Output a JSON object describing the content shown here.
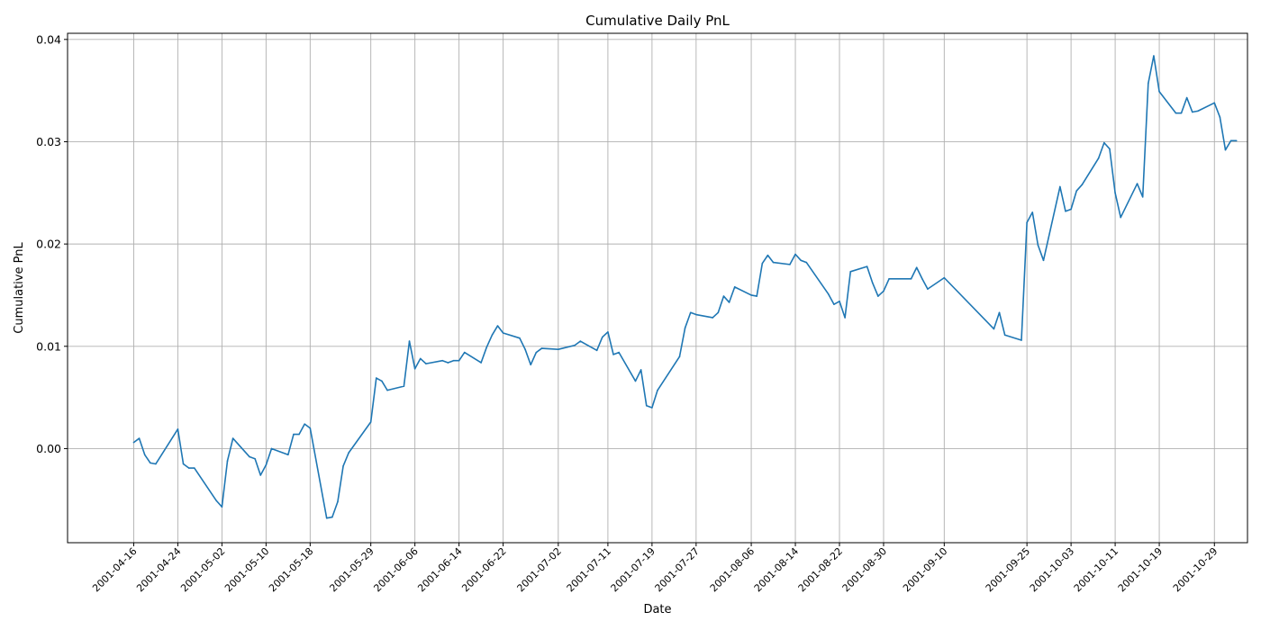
{
  "chart_data": {
    "type": "line",
    "title": "Cumulative Daily PnL",
    "xlabel": "Date",
    "ylabel": "Cumulative PnL",
    "xlim": [
      "2001-04-04",
      "2001-11-04"
    ],
    "ylim": [
      -0.0092,
      0.0406
    ],
    "yticks": [
      0.0,
      0.01,
      0.02,
      0.03,
      0.04
    ],
    "ytick_labels": [
      "0.00",
      "0.01",
      "0.02",
      "0.03",
      "0.04"
    ],
    "xticks": [
      "2001-04-16",
      "2001-04-24",
      "2001-05-02",
      "2001-05-10",
      "2001-05-18",
      "2001-05-29",
      "2001-06-06",
      "2001-06-14",
      "2001-06-22",
      "2001-07-02",
      "2001-07-11",
      "2001-07-19",
      "2001-07-27",
      "2001-08-06",
      "2001-08-14",
      "2001-08-22",
      "2001-08-30",
      "2001-09-10",
      "2001-09-25",
      "2001-10-03",
      "2001-10-11",
      "2001-10-19",
      "2001-10-29"
    ],
    "grid": true,
    "color": "#1f77b4",
    "series": [
      {
        "x": [
          "2001-04-16",
          "2001-04-17",
          "2001-04-18",
          "2001-04-19",
          "2001-04-20",
          "2001-04-24",
          "2001-04-25",
          "2001-04-26",
          "2001-04-27",
          "2001-05-01",
          "2001-05-02",
          "2001-05-03",
          "2001-05-04",
          "2001-05-07",
          "2001-05-08",
          "2001-05-09",
          "2001-05-10",
          "2001-05-11",
          "2001-05-14",
          "2001-05-15",
          "2001-05-16",
          "2001-05-17",
          "2001-05-18",
          "2001-05-21",
          "2001-05-22",
          "2001-05-23",
          "2001-05-24",
          "2001-05-25",
          "2001-05-29",
          "2001-05-30",
          "2001-05-31",
          "2001-06-01",
          "2001-06-04",
          "2001-06-05",
          "2001-06-06",
          "2001-06-07",
          "2001-06-08",
          "2001-06-11",
          "2001-06-12",
          "2001-06-13",
          "2001-06-14",
          "2001-06-15",
          "2001-06-18",
          "2001-06-19",
          "2001-06-20",
          "2001-06-21",
          "2001-06-22",
          "2001-06-25",
          "2001-06-26",
          "2001-06-27",
          "2001-06-28",
          "2001-06-29",
          "2001-07-02",
          "2001-07-05",
          "2001-07-06",
          "2001-07-09",
          "2001-07-10",
          "2001-07-11",
          "2001-07-12",
          "2001-07-13",
          "2001-07-16",
          "2001-07-17",
          "2001-07-18",
          "2001-07-19",
          "2001-07-20",
          "2001-07-24",
          "2001-07-25",
          "2001-07-26",
          "2001-07-27",
          "2001-07-30",
          "2001-07-31",
          "2001-08-01",
          "2001-08-02",
          "2001-08-03",
          "2001-08-06",
          "2001-08-07",
          "2001-08-08",
          "2001-08-09",
          "2001-08-10",
          "2001-08-13",
          "2001-08-14",
          "2001-08-15",
          "2001-08-16",
          "2001-08-20",
          "2001-08-21",
          "2001-08-22",
          "2001-08-23",
          "2001-08-24",
          "2001-08-27",
          "2001-08-28",
          "2001-08-29",
          "2001-08-30",
          "2001-08-31",
          "2001-09-04",
          "2001-09-05",
          "2001-09-06",
          "2001-09-07",
          "2001-09-10",
          "2001-09-19",
          "2001-09-20",
          "2001-09-21",
          "2001-09-24",
          "2001-09-25",
          "2001-09-26",
          "2001-09-27",
          "2001-09-28",
          "2001-10-01",
          "2001-10-02",
          "2001-10-03",
          "2001-10-04",
          "2001-10-05",
          "2001-10-08",
          "2001-10-09",
          "2001-10-10",
          "2001-10-11",
          "2001-10-12",
          "2001-10-15",
          "2001-10-16",
          "2001-10-17",
          "2001-10-18",
          "2001-10-19",
          "2001-10-22",
          "2001-10-23",
          "2001-10-24",
          "2001-10-25",
          "2001-10-26",
          "2001-10-29",
          "2001-10-30",
          "2001-10-31",
          "2001-11-01",
          "2001-11-02"
        ],
        "values": [
          0.0006,
          0.001,
          -0.0006,
          -0.0014,
          -0.0015,
          0.0019,
          -0.0015,
          -0.0019,
          -0.0019,
          -0.0051,
          -0.0057,
          -0.0012,
          0.001,
          -0.0008,
          -0.001,
          -0.0026,
          -0.0016,
          0.0,
          -0.0006,
          0.0014,
          0.0014,
          0.0024,
          0.002,
          -0.0068,
          -0.0067,
          -0.0052,
          -0.0017,
          -0.0004,
          0.0026,
          0.0069,
          0.0066,
          0.0057,
          0.0061,
          0.0105,
          0.0078,
          0.0088,
          0.0083,
          0.0086,
          0.0084,
          0.0086,
          0.0086,
          0.0094,
          0.0084,
          0.0099,
          0.0111,
          0.012,
          0.0113,
          0.0108,
          0.0097,
          0.0082,
          0.0094,
          0.0098,
          0.0097,
          0.0101,
          0.0105,
          0.0096,
          0.0109,
          0.0114,
          0.0092,
          0.0094,
          0.0066,
          0.0077,
          0.0042,
          0.004,
          0.0057,
          0.009,
          0.0118,
          0.0133,
          0.0131,
          0.0128,
          0.0133,
          0.0149,
          0.0143,
          0.0158,
          0.015,
          0.0149,
          0.0181,
          0.0189,
          0.0182,
          0.018,
          0.019,
          0.0184,
          0.0182,
          0.0151,
          0.0141,
          0.0144,
          0.0128,
          0.0173,
          0.0178,
          0.0162,
          0.0149,
          0.0154,
          0.0166,
          0.0166,
          0.0177,
          0.0166,
          0.0156,
          0.0167,
          0.0117,
          0.0133,
          0.0111,
          0.0106,
          0.0221,
          0.0231,
          0.0199,
          0.0184,
          0.0256,
          0.0232,
          0.0234,
          0.0252,
          0.0258,
          0.0284,
          0.0299,
          0.0293,
          0.025,
          0.0226,
          0.0259,
          0.0246,
          0.0357,
          0.0384,
          0.0349,
          0.0328,
          0.0328,
          0.0343,
          0.0329,
          0.033,
          0.0338,
          0.0324,
          0.0292,
          0.0301,
          0.0301
        ]
      }
    ]
  }
}
